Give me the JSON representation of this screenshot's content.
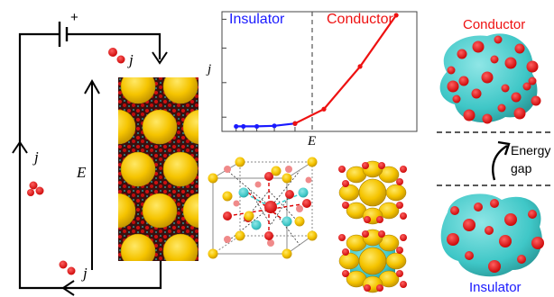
{
  "colors": {
    "insulator": "#1a1aff",
    "conductor": "#ee1111",
    "gold": "#f5c400",
    "teal": "#3fc7c7",
    "oxygen": "#e00000"
  },
  "circuit": {
    "battery_sign": "+",
    "current_top": "j⃗",
    "current_left": "j⃗",
    "current_bottom": "j⃗",
    "field_label": "E⃗"
  },
  "chart_data": {
    "type": "line",
    "xlabel": "E",
    "ylabel": "j",
    "regions": [
      {
        "name": "Insulator"
      },
      {
        "name": "Conductor"
      }
    ],
    "divider_x": 0.62,
    "xlim": [
      0,
      1.8
    ],
    "ylim": [
      0,
      1.0
    ],
    "series": [
      {
        "values": [
          [
            0.05,
            0.02
          ],
          [
            0.12,
            0.02
          ],
          [
            0.25,
            0.02
          ],
          [
            0.42,
            0.025
          ],
          [
            0.62,
            0.045
          ]
        ]
      },
      {
        "values": [
          [
            0.62,
            0.045
          ],
          [
            0.9,
            0.17
          ],
          [
            1.25,
            0.54
          ],
          [
            1.6,
            0.985
          ]
        ]
      }
    ]
  },
  "labels": {
    "conductor_title": "Conductor",
    "energy_gap_line1": "Energy",
    "energy_gap_line2": "gap",
    "insulator_title": "Insulator"
  }
}
